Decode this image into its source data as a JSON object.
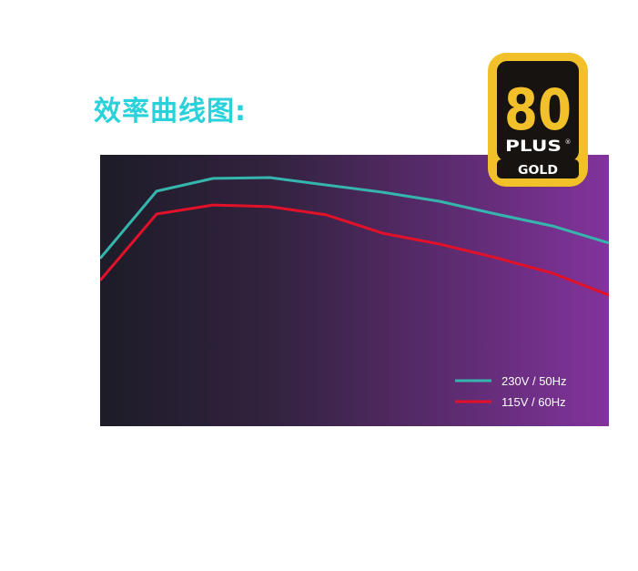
{
  "page": {
    "title": "效率曲线图:"
  },
  "badge": {
    "number": "80",
    "plus": "PLUS",
    "registered": "®",
    "tier": "GOLD",
    "colors": {
      "gold": "#f2c029",
      "dark": "#161310",
      "text_light": "#f2c029",
      "white": "#ffffff"
    }
  },
  "colors": {
    "title": "#29d2da",
    "bg_left": "#1d1c28",
    "bg_right": "#82339c",
    "legend_text": "#ffffff"
  },
  "chart_data": {
    "type": "line",
    "title": "",
    "xlabel": "",
    "ylabel": "",
    "x": [
      0,
      1,
      2,
      3,
      4,
      5,
      6,
      7,
      8,
      9
    ],
    "xlim": [
      0,
      9
    ],
    "ylim": [
      0,
      100
    ],
    "grid": false,
    "legend_position": "bottom-right",
    "series": [
      {
        "name": "230V / 50Hz",
        "color": "#35b5ad",
        "values": [
          61.8,
          86.6,
          91.3,
          91.6,
          88.9,
          86.2,
          82.9,
          78.2,
          73.8,
          67.5
        ]
      },
      {
        "name": "115V / 60Hz",
        "color": "#e2112a",
        "values": [
          53.7,
          78.2,
          81.5,
          80.9,
          77.9,
          71.1,
          67.1,
          62.1,
          56.4,
          48.3
        ]
      }
    ]
  }
}
